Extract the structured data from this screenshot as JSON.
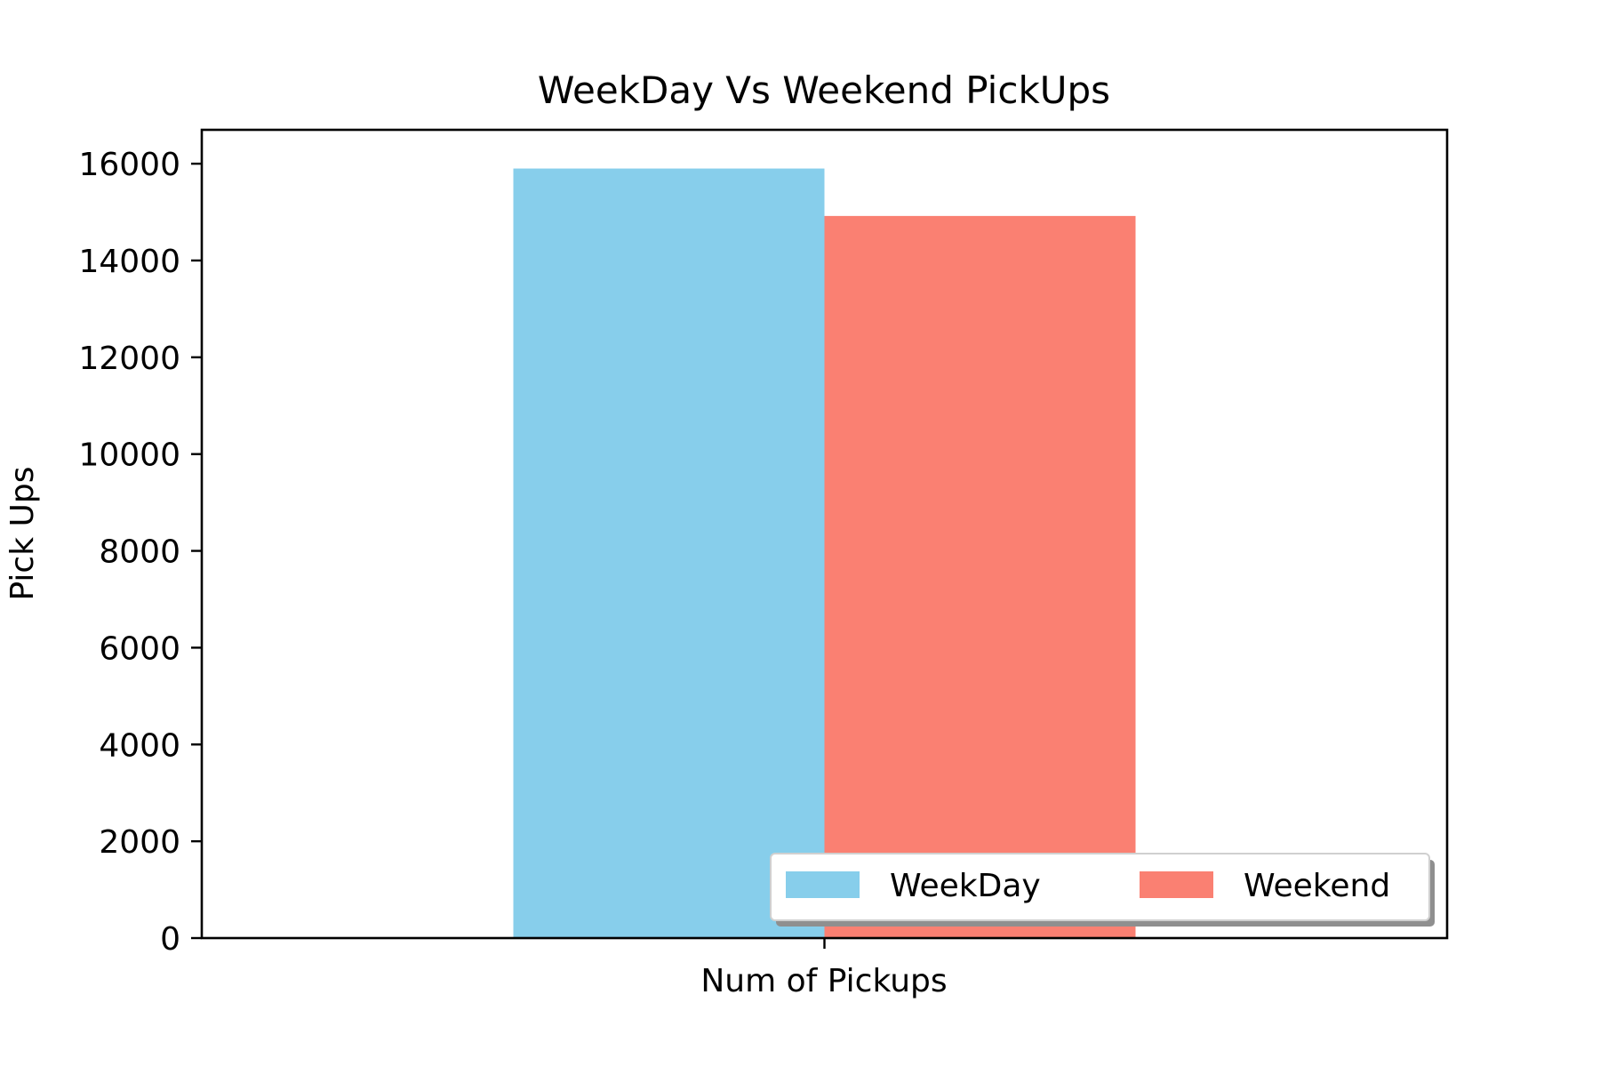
{
  "chart_data": {
    "type": "bar",
    "title": "WeekDay Vs Weekend PickUps",
    "xlabel": "Num of Pickups",
    "ylabel": "Pick Ups",
    "categories": [
      "Num of Pickups"
    ],
    "series": [
      {
        "name": "WeekDay",
        "values": [
          15900
        ],
        "color": "#87CEEB"
      },
      {
        "name": "Weekend",
        "values": [
          14920
        ],
        "color": "#FA8072"
      }
    ],
    "ylim": [
      0,
      16700
    ],
    "yticks": [
      0,
      2000,
      4000,
      6000,
      8000,
      10000,
      12000,
      14000,
      16000
    ],
    "ytick_labels": [
      "0",
      "2000",
      "4000",
      "6000",
      "8000",
      "10000",
      "12000",
      "14000",
      "16000"
    ],
    "grid": false,
    "legend": {
      "placement": "lower-right",
      "columns": 2,
      "shadow": true
    }
  }
}
